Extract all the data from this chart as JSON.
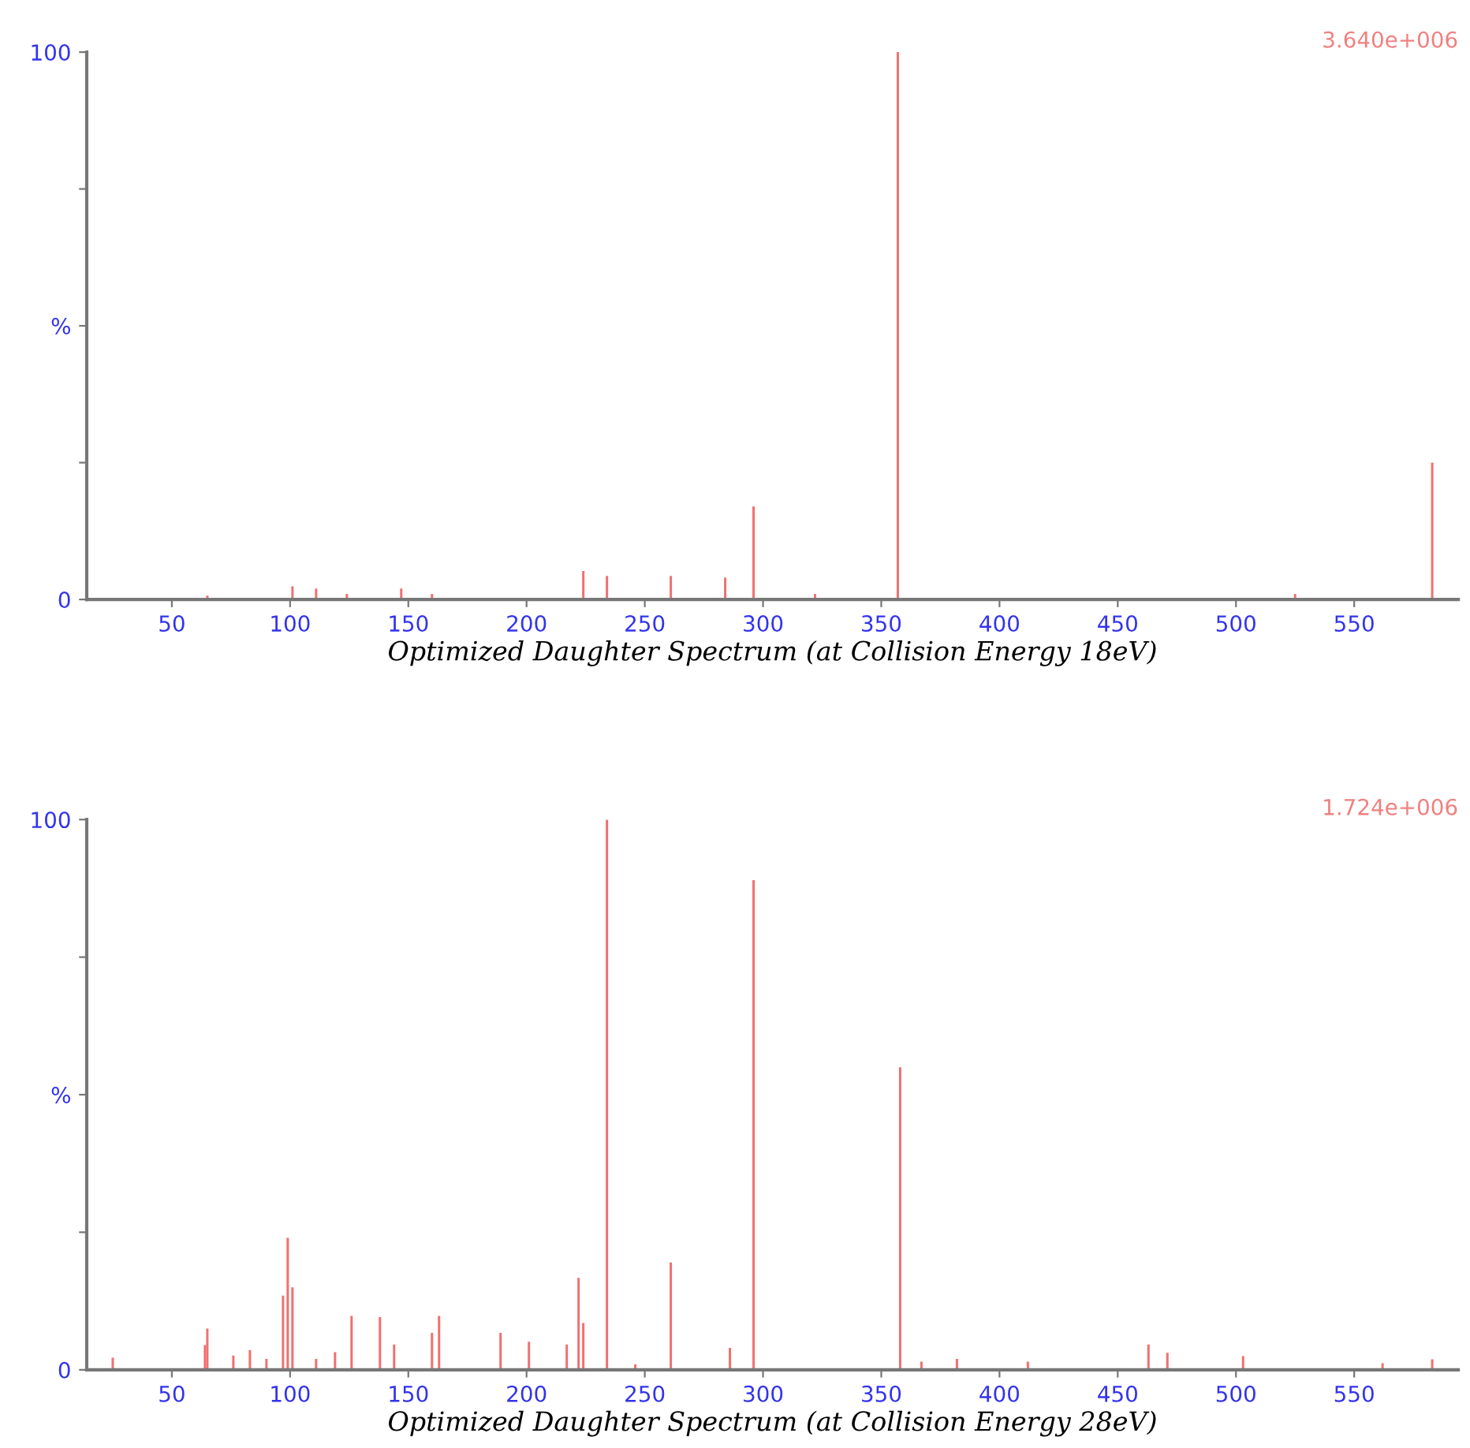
{
  "chart_data": [
    {
      "type": "bar",
      "xlabel": "Optimized Daughter Spectrum (at Collision Energy 18eV)",
      "annotations": [
        "3.640e+006"
      ],
      "x": [
        65,
        101,
        111,
        124,
        147,
        160,
        224,
        234,
        261,
        284,
        296,
        322,
        357,
        525,
        583
      ],
      "values": [
        0.7,
        2.4,
        2,
        1,
        2,
        1,
        5.2,
        4.3,
        4.3,
        4,
        17,
        1,
        100,
        1,
        25
      ],
      "color": "#f07070",
      "xlim": [
        14,
        594
      ],
      "ylim": [
        0,
        100
      ],
      "xticks": [
        50,
        100,
        150,
        200,
        250,
        300,
        350,
        400,
        450,
        500,
        550
      ],
      "yticks": [
        0,
        {
          "value": 25,
          "label": null
        },
        {
          "value": 50,
          "label": "%"
        },
        {
          "value": 75,
          "label": null
        },
        100
      ],
      "grid": false,
      "legend": false
    },
    {
      "type": "bar",
      "xlabel": "Optimized Daughter Spectrum (at Collision Energy 28eV)",
      "annotations": [
        "1.724e+006"
      ],
      "x": [
        25,
        64,
        65,
        76,
        83,
        90,
        97,
        99,
        101,
        111,
        119,
        126,
        138,
        144,
        160,
        163,
        189,
        201,
        217,
        222,
        224,
        234,
        246,
        261,
        286,
        296,
        358,
        367,
        382,
        412,
        463,
        471,
        503,
        562,
        583
      ],
      "values": [
        2.2,
        4.5,
        7.5,
        2.6,
        3.6,
        2,
        13.5,
        24,
        15,
        2,
        3.2,
        9.8,
        9.6,
        4.6,
        6.7,
        9.8,
        6.7,
        5.1,
        4.6,
        16.7,
        8.5,
        100,
        1,
        19.5,
        4,
        89,
        55,
        1.5,
        2,
        1.5,
        4.6,
        3.1,
        2.5,
        1.2,
        1.9
      ],
      "color": "#f07070",
      "xlim": [
        14,
        594
      ],
      "ylim": [
        0,
        100
      ],
      "xticks": [
        50,
        100,
        150,
        200,
        250,
        300,
        350,
        400,
        450,
        500,
        550
      ],
      "yticks": [
        0,
        {
          "value": 25,
          "label": null
        },
        {
          "value": 50,
          "label": "%"
        },
        {
          "value": 75,
          "label": null
        },
        100
      ],
      "grid": false,
      "legend": false
    }
  ]
}
